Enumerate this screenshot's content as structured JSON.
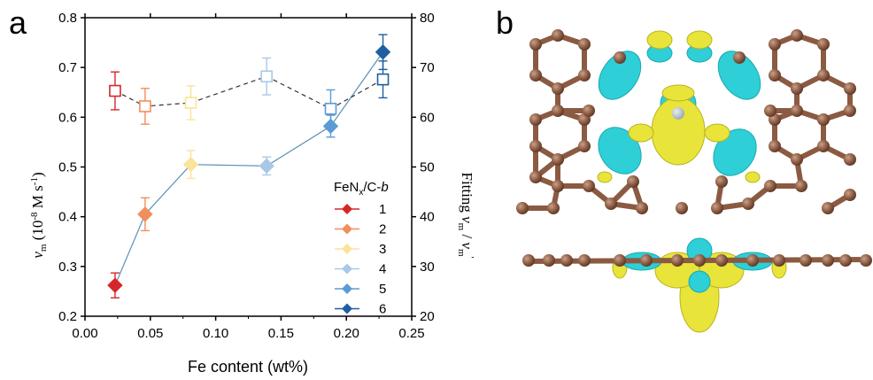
{
  "panels": {
    "a": {
      "letter": "a"
    },
    "b": {
      "letter": "b"
    }
  },
  "chart_data": {
    "type": "scatter",
    "xlabel": "Fe content (wt%)",
    "ylabel": "v_m (10^-8 M s^-1)",
    "ylabel_right": "Fitting v_m / v_m'",
    "xlim": [
      0.0,
      0.25
    ],
    "ylim": [
      0.2,
      0.8
    ],
    "ylim_right": [
      20,
      80
    ],
    "x_ticks": [
      "0.00",
      "0.05",
      "0.10",
      "0.15",
      "0.20",
      "0.25"
    ],
    "y_ticks": [
      "0.2",
      "0.3",
      "0.4",
      "0.5",
      "0.6",
      "0.7",
      "0.8"
    ],
    "y_right_ticks": [
      "20",
      "30",
      "40",
      "50",
      "60",
      "70",
      "80"
    ],
    "grid": false,
    "legend": {
      "placement": "right",
      "title_main": "FeN",
      "title_sub": "x",
      "title_suffix": "/C-",
      "title_italic": "b",
      "entries": [
        "1",
        "2",
        "3",
        "4",
        "5",
        "6"
      ]
    },
    "colors": [
      "#d62728",
      "#f28e5c",
      "#fbe39a",
      "#a9c8e8",
      "#5b9bd5",
      "#1f5fa0"
    ],
    "series": [
      {
        "axis": "left",
        "style": "solid",
        "x": [
          0.023,
          0.046,
          0.081,
          0.139,
          0.188,
          0.228
        ],
        "y": [
          0.262,
          0.405,
          0.505,
          0.502,
          0.582,
          0.731
        ],
        "err": [
          0.025,
          0.033,
          0.028,
          0.018,
          0.022,
          0.035
        ]
      },
      {
        "axis": "right",
        "style": "dashed",
        "x": [
          0.023,
          0.046,
          0.081,
          0.139,
          0.188,
          0.228
        ],
        "y": [
          65.3,
          62.2,
          62.9,
          68.2,
          61.7,
          67.6
        ],
        "err": [
          3.8,
          3.6,
          3.4,
          3.7,
          3.8,
          3.7
        ]
      }
    ]
  }
}
